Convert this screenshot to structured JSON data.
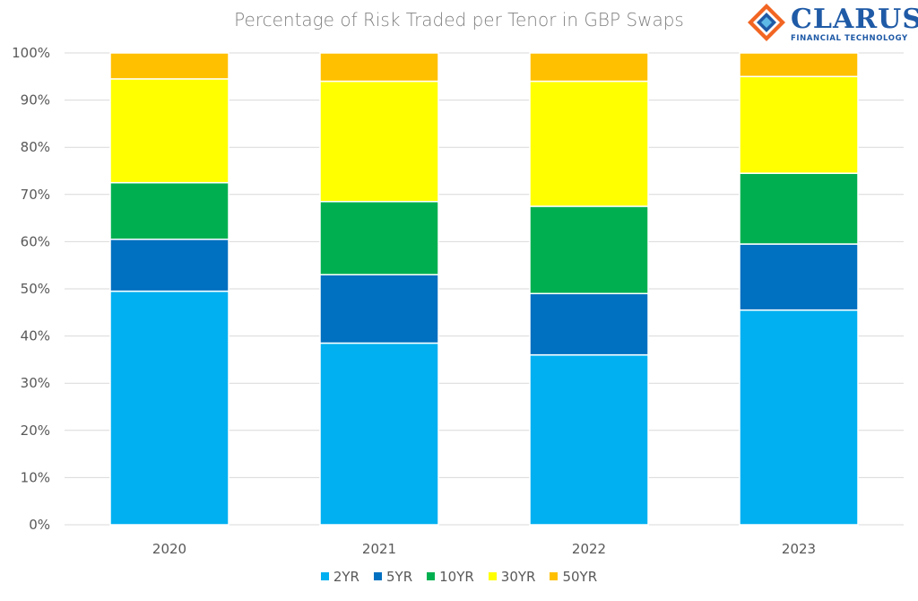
{
  "chart_data": {
    "type": "bar",
    "stacked": true,
    "title": "Percentage of Risk Traded per Tenor in GBP Swaps",
    "categories": [
      "2020",
      "2021",
      "2022",
      "2023"
    ],
    "series": [
      {
        "name": "2YR",
        "color": "#00B0F0",
        "values": [
          49.5,
          38.5,
          36.0,
          45.5
        ]
      },
      {
        "name": "5YR",
        "color": "#0070C0",
        "values": [
          11.0,
          14.5,
          13.0,
          14.0
        ]
      },
      {
        "name": "10YR",
        "color": "#00B050",
        "values": [
          12.0,
          15.5,
          18.5,
          15.0
        ]
      },
      {
        "name": "30YR",
        "color": "#FFFF00",
        "values": [
          22.0,
          25.5,
          26.5,
          20.5
        ]
      },
      {
        "name": "50YR",
        "color": "#FFC000",
        "values": [
          5.5,
          6.0,
          6.0,
          5.0
        ]
      }
    ],
    "ylim": [
      0,
      100
    ],
    "yticks": [
      "0%",
      "10%",
      "20%",
      "30%",
      "40%",
      "50%",
      "60%",
      "70%",
      "80%",
      "90%",
      "100%"
    ],
    "grid": true,
    "legend_position": "bottom"
  },
  "logo": {
    "brand": "CLARUS",
    "subtitle": "FINANCIAL TECHNOLOGY",
    "colors": [
      "#f26522",
      "#1f5aa6",
      "#5fb9e6"
    ]
  }
}
